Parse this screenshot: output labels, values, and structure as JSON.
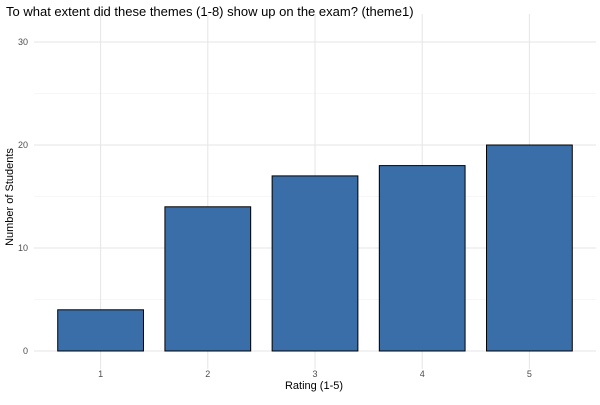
{
  "chart_data": {
    "type": "bar",
    "title": "To what extent did these themes (1-8) show up on the exam? (theme1)",
    "xlabel": "Rating (1-5)",
    "ylabel": "Number of Students",
    "categories": [
      "1",
      "2",
      "3",
      "4",
      "5"
    ],
    "values": [
      4,
      14,
      17,
      18,
      20
    ],
    "ylim": [
      0,
      30
    ],
    "yticks": [
      "0",
      "10",
      "20",
      "30"
    ],
    "grid": true,
    "bar_color": "#3a6ea8",
    "bar_outline_color": "#000000",
    "legend": "none"
  }
}
